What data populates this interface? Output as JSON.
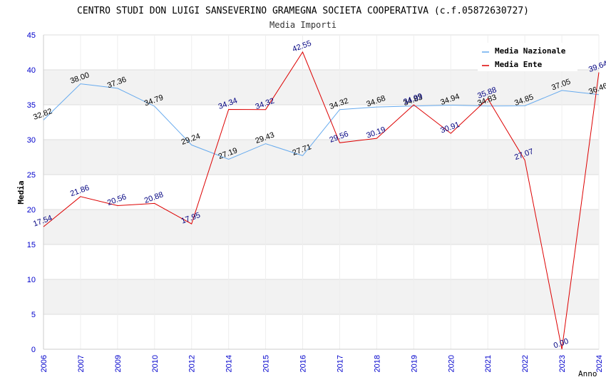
{
  "chart_data": {
    "type": "line",
    "title": "CENTRO STUDI DON LUIGI SANSEVERINO GRAMEGNA SOCIETA COOPERATIVA (c.f.05872630727)",
    "subtitle": "Media Importi",
    "xlabel": "Anno",
    "ylabel": "Media",
    "ylim": [
      0,
      45
    ],
    "yticks": [
      "0",
      "5",
      "10",
      "15",
      "20",
      "25",
      "30",
      "35",
      "40",
      "45"
    ],
    "categories": [
      "2006",
      "2007",
      "2009",
      "2010",
      "2012",
      "2014",
      "2015",
      "2016",
      "2017",
      "2018",
      "2019",
      "2020",
      "2021",
      "2022",
      "2023",
      "2024"
    ],
    "series": [
      {
        "name": "Media Nazionale",
        "color": "#66aaee",
        "values": [
          32.82,
          38.0,
          37.36,
          34.79,
          29.24,
          27.19,
          29.43,
          27.71,
          34.32,
          34.68,
          34.83,
          34.94,
          34.83,
          34.85,
          37.05,
          36.46
        ],
        "labels": [
          "32.82",
          "38.00",
          "37.36",
          "34.79",
          "29.24",
          "27.19",
          "29.43",
          "27.71",
          "34.32",
          "34.68",
          "34.83",
          "34.94",
          "34.83",
          "34.85",
          "37.05",
          "36.46"
        ]
      },
      {
        "name": "Media Ente",
        "color": "#dd0000",
        "values": [
          17.54,
          21.86,
          20.56,
          20.88,
          17.95,
          34.34,
          34.32,
          42.55,
          29.56,
          30.19,
          34.99,
          30.91,
          35.88,
          27.07,
          0.0,
          39.64
        ],
        "labels": [
          "17.54",
          "21.86",
          "20.56",
          "20.88",
          "17.95",
          "34.34",
          "34.32",
          "42.55",
          "29.56",
          "30.19",
          "34.99",
          "30.91",
          "35.88",
          "27.07",
          "0.00",
          "39.64"
        ]
      }
    ],
    "legend_position": "top-right",
    "grid": true
  }
}
